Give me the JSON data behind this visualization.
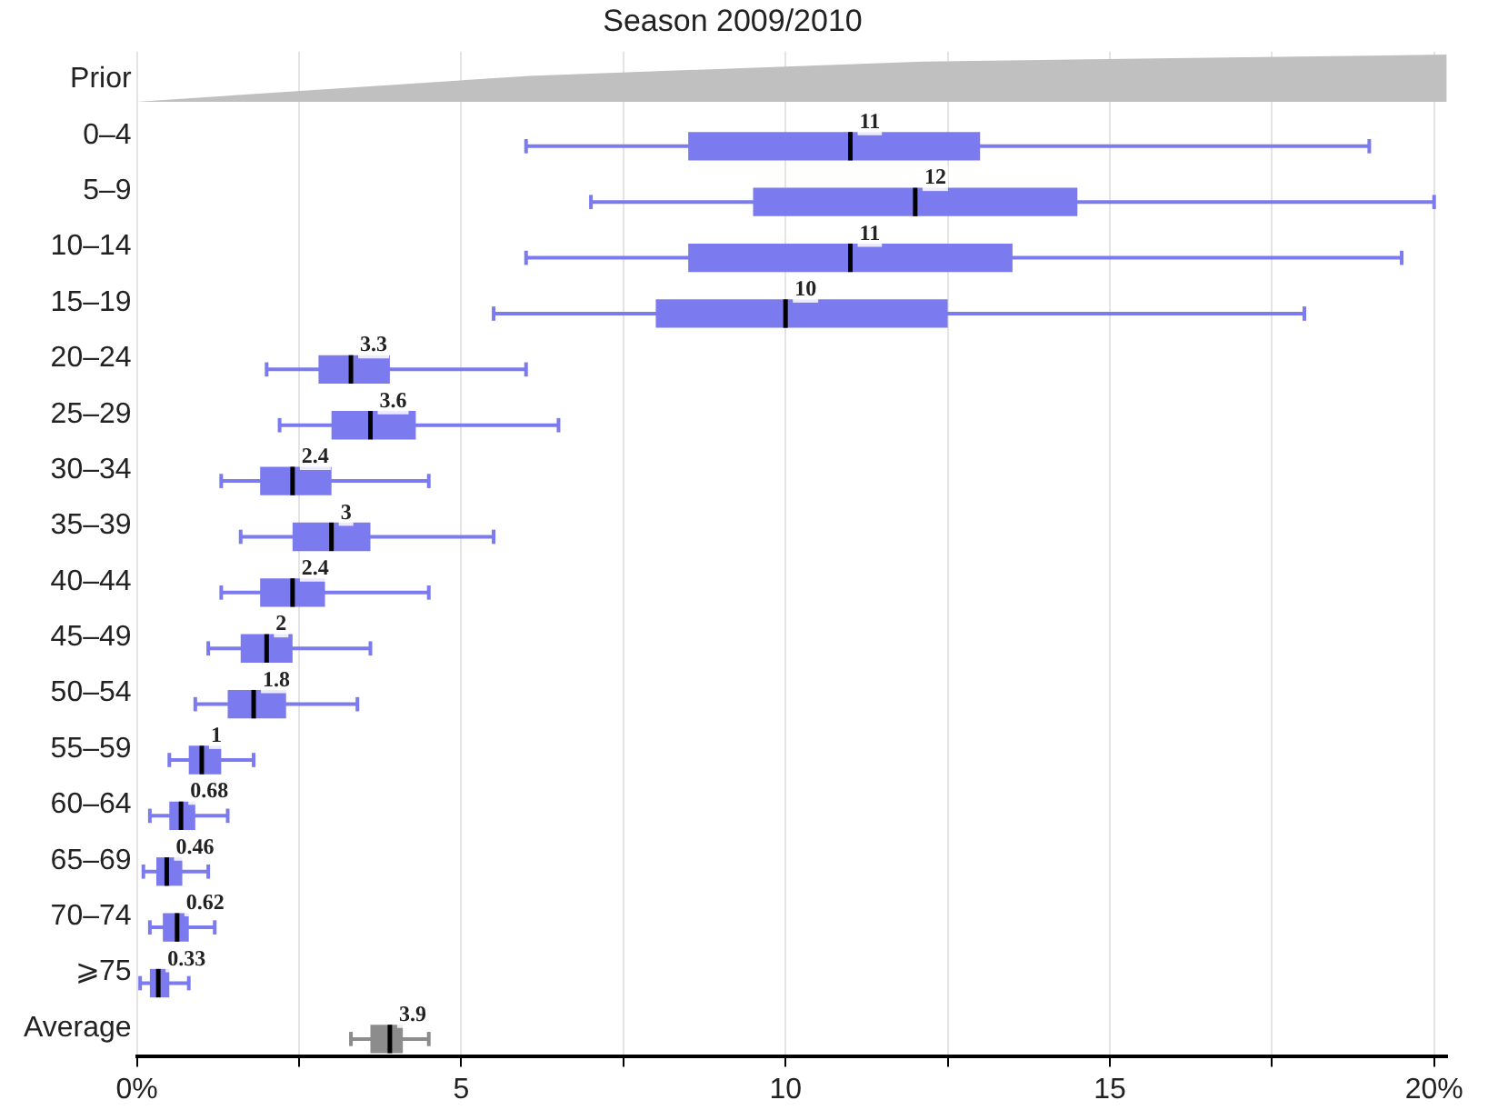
{
  "chart_data": {
    "type": "box",
    "orientation": "horizontal",
    "title": "Season 2009/2010",
    "categories": [
      "Prior",
      "0–4",
      "5–9",
      "10–14",
      "15–19",
      "20–24",
      "25–29",
      "30–34",
      "35–39",
      "40–44",
      "45–49",
      "50–54",
      "55–59",
      "60–64",
      "65–69",
      "70–74",
      "⩾75",
      "Average"
    ],
    "colors": [
      "#c0c0c0",
      "#7b7bef",
      "#7b7bef",
      "#7b7bef",
      "#7b7bef",
      "#7b7bef",
      "#7b7bef",
      "#7b7bef",
      "#7b7bef",
      "#7b7bef",
      "#7b7bef",
      "#7b7bef",
      "#7b7bef",
      "#7b7bef",
      "#7b7bef",
      "#7b7bef",
      "#7b7bef",
      "#8c8c8c"
    ],
    "boxes": [
      null,
      {
        "low": 6,
        "q1": 8.5,
        "median": 11,
        "q3": 13,
        "high": 19
      },
      {
        "low": 7,
        "q1": 9.5,
        "median": 12,
        "q3": 14.5,
        "high": 20
      },
      {
        "low": 6,
        "q1": 8.5,
        "median": 11,
        "q3": 13.5,
        "high": 19.5
      },
      {
        "low": 5.5,
        "q1": 8,
        "median": 10,
        "q3": 12.5,
        "high": 18
      },
      {
        "low": 2,
        "q1": 2.8,
        "median": 3.3,
        "q3": 3.9,
        "high": 6
      },
      {
        "low": 2.2,
        "q1": 3,
        "median": 3.6,
        "q3": 4.3,
        "high": 6.5
      },
      {
        "low": 1.3,
        "q1": 1.9,
        "median": 2.4,
        "q3": 3,
        "high": 4.5
      },
      {
        "low": 1.6,
        "q1": 2.4,
        "median": 3,
        "q3": 3.6,
        "high": 5.5
      },
      {
        "low": 1.3,
        "q1": 1.9,
        "median": 2.4,
        "q3": 2.9,
        "high": 4.5
      },
      {
        "low": 1.1,
        "q1": 1.6,
        "median": 2,
        "q3": 2.4,
        "high": 3.6
      },
      {
        "low": 0.9,
        "q1": 1.4,
        "median": 1.8,
        "q3": 2.3,
        "high": 3.4
      },
      {
        "low": 0.5,
        "q1": 0.8,
        "median": 1,
        "q3": 1.3,
        "high": 1.8
      },
      {
        "low": 0.2,
        "q1": 0.5,
        "median": 0.68,
        "q3": 0.9,
        "high": 1.4
      },
      {
        "low": 0.1,
        "q1": 0.3,
        "median": 0.46,
        "q3": 0.7,
        "high": 1.1
      },
      {
        "low": 0.2,
        "q1": 0.4,
        "median": 0.62,
        "q3": 0.8,
        "high": 1.2
      },
      {
        "low": 0.05,
        "q1": 0.2,
        "median": 0.33,
        "q3": 0.5,
        "high": 0.8
      },
      {
        "low": 3.3,
        "q1": 3.6,
        "median": 3.9,
        "q3": 4.1,
        "high": 4.5
      }
    ],
    "value_labels": [
      null,
      "11",
      "12",
      "11",
      "10",
      "3.3",
      "3.6",
      "2.4",
      "3",
      "2.4",
      "2",
      "1.8",
      "1",
      "0.68",
      "0.46",
      "0.62",
      "0.33",
      "3.9"
    ],
    "xlim": [
      0,
      20.2
    ],
    "xticks": [
      {
        "value": 0,
        "label": "0%"
      },
      {
        "value": 2.5,
        "label": null
      },
      5,
      {
        "value": 7.5,
        "label": null
      },
      10,
      {
        "value": 12.5,
        "label": null
      },
      15,
      {
        "value": 17.5,
        "label": null
      },
      {
        "value": 20,
        "label": "20%"
      }
    ],
    "grid": "x",
    "legend": false
  }
}
